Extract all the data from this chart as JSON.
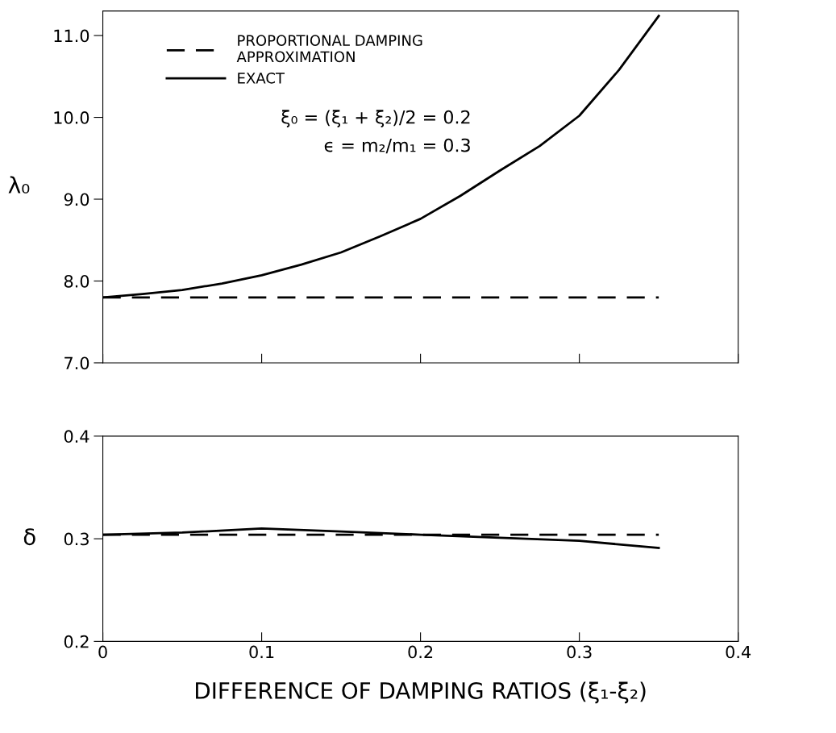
{
  "chart_data": [
    {
      "type": "line",
      "ylabel": "λ₀",
      "xlim": [
        0,
        0.4
      ],
      "xticks": [
        0,
        0.1,
        0.2,
        0.3,
        0.4
      ],
      "ylim": [
        7,
        11.3
      ],
      "yticks": [
        {
          "value": 7,
          "label": "7.0"
        },
        {
          "value": 8,
          "label": "8.0"
        },
        {
          "value": 9,
          "label": "9.0"
        },
        {
          "value": 10,
          "label": "10.0"
        },
        {
          "value": 11,
          "label": "11.0"
        }
      ],
      "tick_labels": "y",
      "legend": "top left",
      "annotations": [
        "ξ₀ = (ξ₁ + ξ₂)/2 = 0.2",
        "ϵ = m₂/m₁ = 0.3"
      ],
      "series": [
        {
          "name": "PROPORTIONAL DAMPING\nAPPROXIMATION",
          "color": "#000000",
          "line_style": "dashed",
          "x": [
            0,
            0.35
          ],
          "values": [
            7.8,
            7.8
          ]
        },
        {
          "name": "EXACT",
          "color": "#000000",
          "line_style": "solid",
          "x": [
            0,
            0.025,
            0.05,
            0.075,
            0.1,
            0.125,
            0.15,
            0.175,
            0.2,
            0.225,
            0.25,
            0.275,
            0.3,
            0.325,
            0.35
          ],
          "values": [
            7.8,
            7.84,
            7.89,
            7.97,
            8.07,
            8.2,
            8.35,
            8.55,
            8.76,
            9.04,
            9.35,
            9.65,
            10.02,
            10.58,
            11.24
          ]
        }
      ]
    },
    {
      "type": "line",
      "ylabel": "δ",
      "xlabel": "DIFFERENCE OF DAMPING RATIOS (ξ₁-ξ₂)",
      "xlim": [
        0,
        0.4
      ],
      "xticks": [
        0,
        0.1,
        0.2,
        0.3,
        0.4
      ],
      "ylim": [
        0.2,
        0.4
      ],
      "yticks": [
        0.2,
        0.3,
        0.4
      ],
      "series": [
        {
          "color": "#000000",
          "line_style": "dashed",
          "x": [
            0,
            0.35
          ],
          "values": [
            0.304,
            0.304
          ]
        },
        {
          "color": "#000000",
          "line_style": "solid",
          "x": [
            0,
            0.05,
            0.1,
            0.15,
            0.2,
            0.25,
            0.3,
            0.35
          ],
          "values": [
            0.304,
            0.306,
            0.31,
            0.307,
            0.304,
            0.301,
            0.298,
            0.291
          ]
        }
      ]
    }
  ]
}
